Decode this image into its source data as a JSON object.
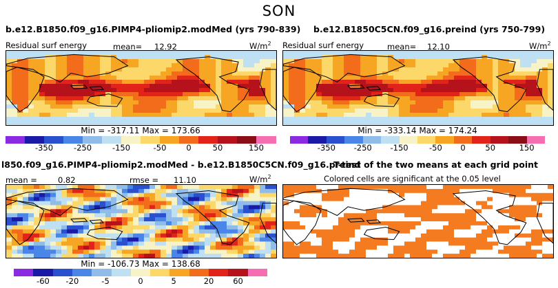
{
  "season": "SON",
  "panels": {
    "p1": {
      "title": "b.e12.B1850.f09_g16.PIMP4-pliomip2.modMed (yrs 790-839)",
      "variable": "Residual surf energy",
      "mean_label": "mean=",
      "mean_value": "12.92",
      "units": "W/m",
      "units_exp": "2",
      "minmax": "Min = -317.11 Max = 173.66"
    },
    "p2": {
      "title": "b.e12.B1850C5CN.f09_g16.preind (yrs 750-799)",
      "variable": "Residual surf energy",
      "mean_label": "mean=",
      "mean_value": "12.10",
      "units": "W/m",
      "units_exp": "2",
      "minmax": "Min = -333.14 Max = 174.24"
    },
    "p3": {
      "title": "l850.f09_g16.PIMP4-pliomip2.modMed - b.e12.B1850C5CN.f09_g16.preind",
      "mean_label": "mean =",
      "mean_value": "0.82",
      "rmse_label": "rmse =",
      "rmse_value": "11.10",
      "units": "W/m",
      "units_exp": "2",
      "minmax": "Min = -106.73 Max = 138.68"
    },
    "p4": {
      "title": "T-test of the two means at each grid point",
      "subtitle": "Colored cells are significant at the 0.05 level"
    }
  },
  "colors": {
    "scale_main": [
      "#8a2be2",
      "#1a1aa6",
      "#2a4fcf",
      "#4a86e8",
      "#8fbce9",
      "#bfe0f2",
      "#f7f3c6",
      "#fcd76a",
      "#f6a623",
      "#f26c1c",
      "#e2231a",
      "#b5121b",
      "#8b0d15",
      "#f76db2"
    ],
    "scale_diff": [
      "#8a2be2",
      "#1a1aa6",
      "#2a4fcf",
      "#4a86e8",
      "#8fbce9",
      "#bfe0f2",
      "#f7f3c6",
      "#fcd76a",
      "#f6a623",
      "#f26c1c",
      "#e2231a",
      "#b5121b",
      "#f76db2"
    ],
    "significant": "#f47b20",
    "land_line": "#000000"
  },
  "chart_data": [
    {
      "type": "heatmap",
      "title": "b.e12.B1850.f09_g16.PIMP4-pliomip2.modMed (yrs 790-839)",
      "variable": "Residual surf energy",
      "units": "W/m2",
      "mean": 12.92,
      "min": -317.11,
      "max": 173.66,
      "colorbar_ticks": [
        "-350",
        "-250",
        "-150",
        "-50",
        "0",
        "50",
        "150"
      ]
    },
    {
      "type": "heatmap",
      "title": "b.e12.B1850C5CN.f09_g16.preind (yrs 750-799)",
      "variable": "Residual surf energy",
      "units": "W/m2",
      "mean": 12.1,
      "min": -333.14,
      "max": 174.24,
      "colorbar_ticks": [
        "-350",
        "-250",
        "-150",
        "-50",
        "0",
        "50",
        "150"
      ]
    },
    {
      "type": "heatmap",
      "title": "PIMP4-pliomip2.modMed minus B1850C5CN.preind",
      "units": "W/m2",
      "mean": 0.82,
      "rmse": 11.1,
      "min": -106.73,
      "max": 138.68,
      "colorbar_ticks": [
        "-60",
        "-20",
        "-5",
        "0",
        "5",
        "20",
        "60"
      ]
    },
    {
      "type": "heatmap",
      "title": "T-test of the two means at each grid point",
      "subtitle": "Colored cells are significant at the 0.05 level"
    }
  ]
}
